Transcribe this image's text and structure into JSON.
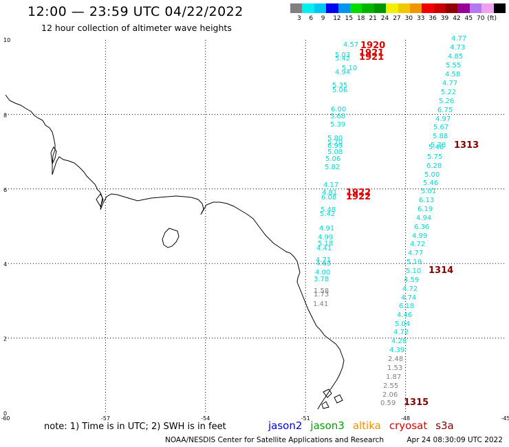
{
  "header": {
    "title": "12:00 — 23:59 UTC 04/22/2022",
    "subtitle": "12 hour collection of altimeter wave heights"
  },
  "color_scale": {
    "swatches": [
      "#808080",
      "#00f0f0",
      "#00c8f0",
      "#0000f0",
      "#0096f0",
      "#00dc00",
      "#00b400",
      "#009600",
      "#f0f000",
      "#f0c800",
      "#f09600",
      "#f00000",
      "#c80000",
      "#900000",
      "#960096",
      "#b478f0",
      "#f0a0f0",
      "#000000"
    ],
    "labels": [
      "3",
      "6",
      "9",
      "12",
      "15",
      "18",
      "21",
      "24",
      "27",
      "30",
      "33",
      "36",
      "39",
      "42",
      "45",
      "70",
      "(ft)"
    ]
  },
  "axes": {
    "x_labels": [
      "-60",
      "-57",
      "-54",
      "-51",
      "-48",
      "-45"
    ],
    "y_labels": [
      "10",
      "8",
      "6",
      "4",
      "2",
      "0"
    ],
    "xlim": [
      -60,
      -45
    ],
    "ylim": [
      0,
      10
    ]
  },
  "track_a": {
    "values": [
      "4.57",
      "5.03",
      "5.42",
      "5.10",
      "4.94",
      "5.35",
      "5.06",
      "6.00",
      "5.68",
      "5.39",
      "5.80",
      "5.70",
      "6.99",
      "5.08",
      "5.06",
      "5.82",
      "4.17",
      "4.81",
      "6.08",
      "5.48",
      "5.42",
      "4.91",
      "4.99",
      "5.18",
      "4.41",
      "4.71",
      "4.63",
      "4.00",
      "3.78",
      "1.58",
      "1.73",
      "1.41"
    ],
    "colors": [
      "#00d8d8",
      "#00d8d8",
      "#00d8d8",
      "#00d8d8",
      "#00d8d8",
      "#00d8d8",
      "#00d8d8",
      "#00d8d8",
      "#00d8d8",
      "#00d8d8",
      "#00d8d8",
      "#00d8d8",
      "#00d8d8",
      "#00d8d8",
      "#00d8d8",
      "#00d8d8",
      "#00d8d8",
      "#00d8d8",
      "#00d8d8",
      "#00d8d8",
      "#00d8d8",
      "#00d8d8",
      "#00d8d8",
      "#00d8d8",
      "#00d8d8",
      "#00d8d8",
      "#00d8d8",
      "#00d8d8",
      "#00d8d8",
      "#808080",
      "#808080",
      "#808080"
    ]
  },
  "track_b": {
    "values": [
      "4.77",
      "4.73",
      "4.85",
      "5.55",
      "4.58",
      "4.77",
      "5.22",
      "5.26",
      "6.75",
      "4.97",
      "5.67",
      "5.88",
      "5.78",
      "5.46",
      "5.75",
      "6.28",
      "5.00",
      "5.46",
      "5.01",
      "6.13",
      "6.19",
      "4.94",
      "6.36",
      "4.99",
      "4.72",
      "4.77",
      "5.19",
      "5.10",
      "4.59",
      "4.72",
      "4.74",
      "6.18",
      "4.46",
      "5.04",
      "4.72",
      "4.28",
      "4.39",
      "2.48",
      "1.53",
      "1.87",
      "2.55",
      "2.06",
      "0.59"
    ],
    "colors": [
      "#00d8d8",
      "#00d8d8",
      "#00d8d8",
      "#00d8d8",
      "#00d8d8",
      "#00d8d8",
      "#00d8d8",
      "#00d8d8",
      "#00d8d8",
      "#00d8d8",
      "#00d8d8",
      "#00d8d8",
      "#00d8d8",
      "#00d8d8",
      "#00d8d8",
      "#00d8d8",
      "#00d8d8",
      "#00d8d8",
      "#00d8d8",
      "#00d8d8",
      "#00d8d8",
      "#00d8d8",
      "#00d8d8",
      "#00d8d8",
      "#00d8d8",
      "#00d8d8",
      "#00d8d8",
      "#00d8d8",
      "#00d8d8",
      "#00d8d8",
      "#00d8d8",
      "#00d8d8",
      "#00d8d8",
      "#00d8d8",
      "#00d8d8",
      "#00d8d8",
      "#00d8d8",
      "#808080",
      "#808080",
      "#808080",
      "#808080",
      "#808080",
      "#808080"
    ]
  },
  "time_labels": [
    {
      "text": "1920",
      "color": "#e00000"
    },
    {
      "text": "1921",
      "color": "#e00000"
    },
    {
      "text": "1921",
      "color": "#e00000"
    },
    {
      "text": "1922",
      "color": "#e00000"
    },
    {
      "text": "1922",
      "color": "#e00000"
    },
    {
      "text": "1313",
      "color": "#800000"
    },
    {
      "text": "1314",
      "color": "#800000"
    },
    {
      "text": "1315",
      "color": "#800000"
    }
  ],
  "note": "note:  1) Time is in UTC;  2) SWH is in feet",
  "satellites": [
    {
      "name": "jason2",
      "color": "#0000e0"
    },
    {
      "name": "jason3",
      "color": "#00a000"
    },
    {
      "name": "altika",
      "color": "#f09000"
    },
    {
      "name": "cryosat",
      "color": "#e00000"
    },
    {
      "name": "s3a",
      "color": "#800000"
    }
  ],
  "footer": {
    "org": "NOAA/NESDIS Center for Satellite Applications and Research",
    "timestamp": "Apr 24 08:30:09 UTC 2022"
  }
}
